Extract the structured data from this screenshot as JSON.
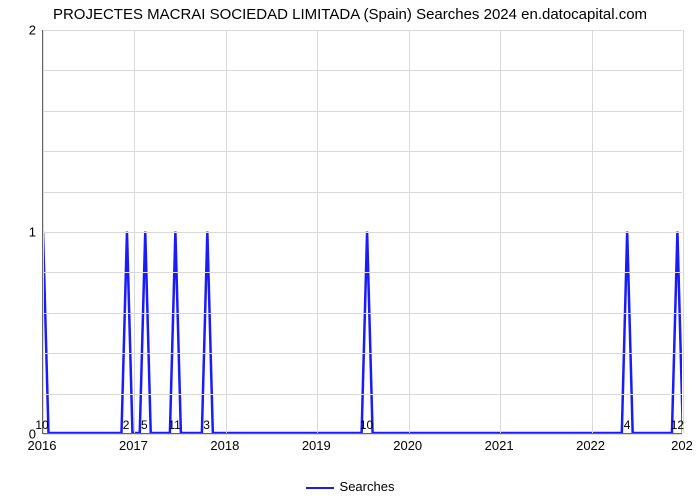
{
  "title": "PROJECTES MACRAI SOCIEDAD LIMITADA (Spain) Searches 2024 en.datocapital.com",
  "chart": {
    "type": "line",
    "line_color": "#1a1aff",
    "line_width": 2.5,
    "background_color": "#ffffff",
    "grid_color": "#d9d9d9",
    "axis_color": "#666666",
    "title_fontsize": 15,
    "tick_fontsize": 13,
    "point_label_fontsize": 12,
    "x_domain_min": 2016.0,
    "x_domain_max": 2023.0,
    "ylim": [
      0,
      2
    ],
    "yticks": [
      0,
      1,
      2
    ],
    "y_minor_count_between": 4,
    "xticks": [
      2016,
      2017,
      2018,
      2019,
      2020,
      2021,
      2022
    ],
    "x_last_label": "202",
    "legend_label": "Searches",
    "spikes": [
      {
        "x": 2016.0,
        "value": 1,
        "label": "10"
      },
      {
        "x": 2016.92,
        "value": 1,
        "label": "2"
      },
      {
        "x": 2017.12,
        "value": 1,
        "label": "5"
      },
      {
        "x": 2017.45,
        "value": 1,
        "label": "11"
      },
      {
        "x": 2017.8,
        "value": 1,
        "label": "3"
      },
      {
        "x": 2019.55,
        "value": 1,
        "label": "10"
      },
      {
        "x": 2022.4,
        "value": 1,
        "label": "4"
      },
      {
        "x": 2022.95,
        "value": 1,
        "label": "12"
      }
    ],
    "spike_half_width_years": 0.06
  }
}
